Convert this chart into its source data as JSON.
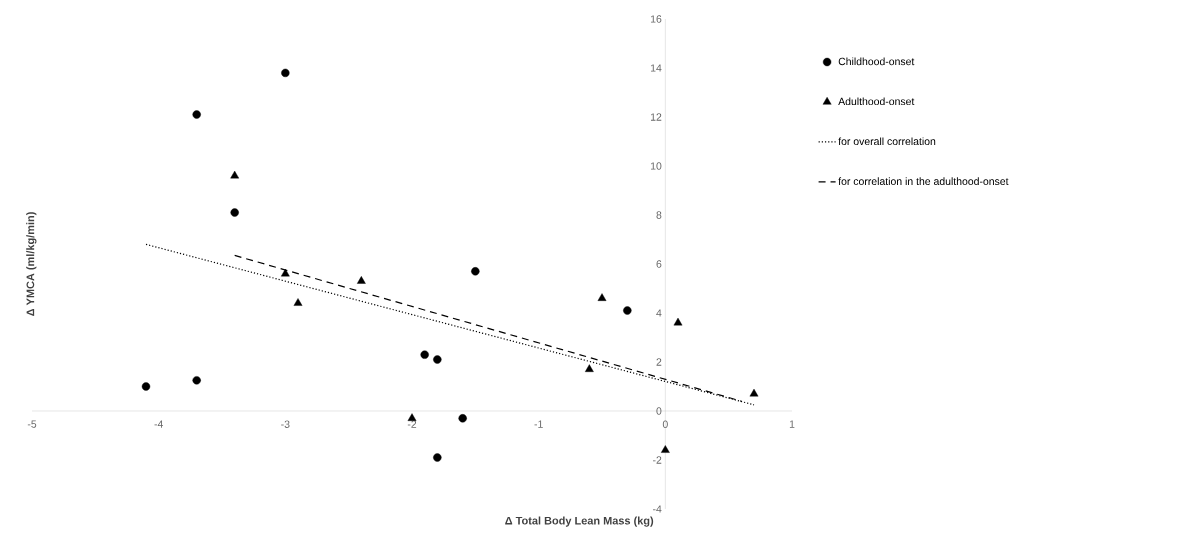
{
  "chart_data": {
    "type": "scatter",
    "xlabel": "Δ Total Body Lean Mass (kg)",
    "ylabel": "Δ YMCA (ml/kg/min)",
    "xlim": [
      -5,
      1
    ],
    "ylim": [
      -4,
      16
    ],
    "xticks": [
      -5,
      -4,
      -3,
      -2,
      -1,
      0,
      1
    ],
    "yticks": [
      -4,
      -2,
      0,
      2,
      4,
      6,
      8,
      10,
      12,
      14,
      16
    ],
    "grid": false,
    "legend": "right",
    "series": [
      {
        "name": "Childhood-onset",
        "marker": "circle",
        "color": "#000000",
        "x": [
          -4.1,
          -3.7,
          -3.7,
          -3.0,
          -3.4,
          -1.9,
          -1.8,
          -1.6,
          -1.8,
          -1.5,
          -0.3
        ],
        "values": [
          1.0,
          1.25,
          12.1,
          13.8,
          8.1,
          2.3,
          2.1,
          -0.3,
          -1.9,
          5.7,
          4.1
        ]
      },
      {
        "name": "Adulthood-onset",
        "marker": "triangle",
        "color": "#000000",
        "x": [
          -3.4,
          -3.0,
          -2.9,
          -2.4,
          -2.0,
          -0.6,
          -0.5,
          0.1,
          0.0,
          0.7
        ],
        "values": [
          9.6,
          5.6,
          4.4,
          5.3,
          -0.3,
          1.7,
          4.6,
          3.6,
          -1.6,
          0.7
        ]
      },
      {
        "name": "for overall correlation",
        "type": "line",
        "line_style": "dotted",
        "color": "#000000",
        "x": [
          -4.1,
          0.7
        ],
        "values": [
          6.8,
          0.25
        ]
      },
      {
        "name": "for correlation in the adulthood-onset",
        "type": "line",
        "line_style": "dashed",
        "color": "#000000",
        "x": [
          -3.4,
          0.6
        ],
        "values": [
          6.35,
          0.4
        ]
      }
    ]
  }
}
